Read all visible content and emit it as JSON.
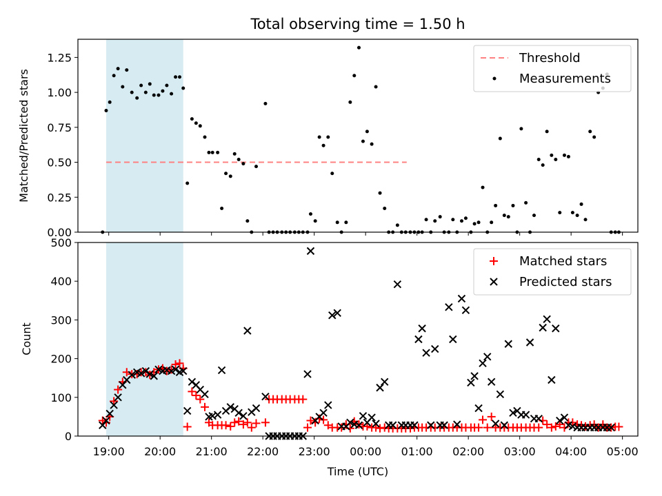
{
  "figure": {
    "title": "Total observing time = 1.50 h",
    "xlabel": "Time (UTC)",
    "x_ticks": [
      "19:00",
      "20:00",
      "21:00",
      "22:00",
      "23:00",
      "00:00",
      "01:00",
      "02:00",
      "03:00",
      "04:00",
      "05:00"
    ],
    "shaded_region": {
      "start_hour": 18.95,
      "end_hour": 20.45,
      "color": "#add8e6"
    }
  },
  "chart_data": [
    {
      "type": "scatter",
      "ylabel": "Matched/Predicted stars",
      "ylim": [
        0,
        1.38
      ],
      "yticks": [
        "0.00",
        "0.25",
        "0.50",
        "0.75",
        "1.00",
        "1.25"
      ],
      "legend_position": "top-right",
      "threshold": {
        "name": "Threshold",
        "value": 0.5,
        "x_start": 18.95,
        "x_end": 24.8,
        "color": "#ff8080"
      },
      "series": [
        {
          "name": "Measurements",
          "color": "#000000",
          "x": [
            18.88,
            18.95,
            19.02,
            19.1,
            19.18,
            19.27,
            19.35,
            19.45,
            19.55,
            19.63,
            19.72,
            19.8,
            19.88,
            19.97,
            20.05,
            20.13,
            20.22,
            20.3,
            20.38,
            20.45,
            20.53,
            20.62,
            20.7,
            20.78,
            20.87,
            20.95,
            21.02,
            21.12,
            21.2,
            21.28,
            21.37,
            21.45,
            21.53,
            21.62,
            21.7,
            21.78,
            21.87,
            22.05,
            22.12,
            22.2,
            22.28,
            22.37,
            22.45,
            22.53,
            22.62,
            22.7,
            22.78,
            22.87,
            22.93,
            23.02,
            23.1,
            23.18,
            23.27,
            23.35,
            23.45,
            23.53,
            23.62,
            23.7,
            23.78,
            23.87,
            23.95,
            24.03,
            24.12,
            24.2,
            24.28,
            24.37,
            24.45,
            24.53,
            24.62,
            24.7,
            24.78,
            24.87,
            24.95,
            25.03,
            25.1,
            25.18,
            25.27,
            25.35,
            25.45,
            25.53,
            25.62,
            25.7,
            25.78,
            25.87,
            25.95,
            26.05,
            26.12,
            26.2,
            26.28,
            26.37,
            26.45,
            26.53,
            26.62,
            26.7,
            26.78,
            26.87,
            26.95,
            27.03,
            27.12,
            27.2,
            27.28,
            27.37,
            27.45,
            27.53,
            27.62,
            27.7,
            27.78,
            27.87,
            27.95,
            28.03,
            28.12,
            28.2,
            28.28,
            28.37,
            28.45,
            28.53,
            28.62,
            28.7,
            28.78
          ],
          "y": [
            0.0,
            0.87,
            0.93,
            1.12,
            1.17,
            1.04,
            1.16,
            1.0,
            0.96,
            1.05,
            1.0,
            1.06,
            0.98,
            0.98,
            1.01,
            1.05,
            0.99,
            1.11,
            1.11,
            1.03,
            0.35,
            0.81,
            0.78,
            0.76,
            0.68,
            0.57,
            0.57,
            0.57,
            0.17,
            0.42,
            0.4,
            0.56,
            0.52,
            0.49,
            0.08,
            0.0,
            0.47,
            0.92,
            0.0,
            0.0,
            0.0,
            0.0,
            0.0,
            0.0,
            0.0,
            0.0,
            0.0,
            0.0,
            0.13,
            0.08,
            0.68,
            0.62,
            0.68,
            0.42,
            0.07,
            0.0,
            0.07,
            0.93,
            1.12,
            1.32,
            0.65,
            0.72,
            0.63,
            1.04,
            0.28,
            0.17,
            0.0,
            0.0,
            0.05,
            0.0,
            0.0,
            0.0,
            0.0,
            0.0,
            0.0,
            0.09,
            0.0,
            0.08,
            0.11,
            0.0,
            0.0,
            0.09,
            0.0,
            0.08,
            0.1,
            0.0,
            0.06,
            0.07,
            0.32,
            0.0,
            0.07,
            0.19,
            0.67,
            0.12,
            0.11,
            0.19,
            0.0,
            0.74,
            0.21,
            0.0,
            0.12,
            0.52,
            0.48,
            0.72,
            0.55,
            0.52,
            0.14,
            0.55,
            0.54,
            0.14,
            0.12,
            0.2,
            0.09,
            0.72,
            0.68,
            1.0,
            1.03,
            1.13,
            0.0
          ]
        },
        {
          "name": "Measurements (tail)",
          "color": "#000000",
          "legend": false,
          "x": [
            28.86,
            28.93
          ],
          "y": [
            0.0,
            0.0
          ]
        }
      ]
    },
    {
      "type": "scatter",
      "ylabel": "Count",
      "ylim": [
        0,
        500
      ],
      "yticks": [
        "0",
        "100",
        "200",
        "300",
        "400",
        "500"
      ],
      "legend_position": "top-right",
      "series": [
        {
          "name": "Matched stars",
          "marker": "+",
          "color": "#ff0000",
          "x": [
            18.88,
            18.95,
            19.02,
            19.1,
            19.18,
            19.27,
            19.35,
            19.45,
            19.55,
            19.63,
            19.72,
            19.8,
            19.88,
            19.97,
            20.05,
            20.13,
            20.22,
            20.3,
            20.38,
            20.45,
            20.53,
            20.62,
            20.7,
            20.78,
            20.87,
            20.95,
            21.02,
            21.12,
            21.2,
            21.28,
            21.37,
            21.45,
            21.53,
            21.62,
            21.7,
            21.78,
            21.87,
            22.05,
            22.12,
            22.2,
            22.28,
            22.37,
            22.45,
            22.53,
            22.62,
            22.7,
            22.78,
            22.87,
            22.93,
            23.02,
            23.1,
            23.18,
            23.27,
            23.35,
            23.45,
            23.53,
            23.62,
            23.7,
            23.78,
            23.87,
            23.95,
            24.03,
            24.12,
            24.2,
            24.28,
            24.37,
            24.45,
            24.53,
            24.62,
            24.7,
            24.78,
            24.87,
            24.95,
            25.03,
            25.1,
            25.18,
            25.27,
            25.35,
            25.45,
            25.53,
            25.62,
            25.7,
            25.78,
            25.87,
            25.95,
            26.05,
            26.12,
            26.2,
            26.28,
            26.37,
            26.45,
            26.53,
            26.62,
            26.7,
            26.78,
            26.87,
            26.95,
            27.03,
            27.12,
            27.2,
            27.28,
            27.37,
            27.45,
            27.53,
            27.62,
            27.7,
            27.78,
            27.87,
            27.95,
            28.03,
            28.12,
            28.2,
            28.28,
            28.37,
            28.45,
            28.53,
            28.62,
            28.7,
            28.78
          ],
          "y": [
            40,
            35,
            50,
            90,
            120,
            140,
            165,
            160,
            160,
            165,
            165,
            158,
            165,
            172,
            175,
            168,
            172,
            185,
            188,
            175,
            24,
            115,
            105,
            95,
            75,
            35,
            28,
            28,
            28,
            28,
            25,
            35,
            38,
            30,
            35,
            22,
            33,
            35,
            95,
            95,
            95,
            95,
            95,
            95,
            95,
            95,
            95,
            22,
            40,
            35,
            45,
            42,
            28,
            22,
            22,
            22,
            30,
            20,
            38,
            30,
            25,
            25,
            22,
            22,
            20,
            22,
            20,
            20,
            20,
            20,
            20,
            20,
            22,
            22,
            22,
            22,
            22,
            22,
            22,
            22,
            22,
            22,
            22,
            22,
            22,
            22,
            22,
            22,
            42,
            22,
            50,
            22,
            22,
            22,
            22,
            22,
            22,
            22,
            22,
            22,
            22,
            22,
            40,
            30,
            22,
            25,
            30,
            22,
            35,
            35,
            30,
            28,
            25,
            28,
            30,
            22,
            30,
            22,
            22
          ]
        },
        {
          "name": "Matched stars (tail)",
          "marker": "+",
          "color": "#ff0000",
          "legend": false,
          "x": [
            28.86,
            28.93
          ],
          "y": [
            24,
            24
          ]
        },
        {
          "name": "Predicted stars",
          "marker": "x",
          "color": "#000000",
          "x": [
            18.88,
            18.95,
            19.02,
            19.1,
            19.18,
            19.27,
            19.35,
            19.45,
            19.55,
            19.63,
            19.72,
            19.8,
            19.88,
            19.97,
            20.05,
            20.13,
            20.22,
            20.3,
            20.38,
            20.45,
            20.53,
            20.62,
            20.7,
            20.78,
            20.87,
            20.95,
            21.02,
            21.12,
            21.2,
            21.28,
            21.37,
            21.45,
            21.53,
            21.62,
            21.7,
            21.78,
            21.87,
            22.05,
            22.12,
            22.2,
            22.28,
            22.37,
            22.45,
            22.53,
            22.62,
            22.7,
            22.78,
            22.87,
            22.93,
            23.02,
            23.1,
            23.18,
            23.27,
            23.35,
            23.45,
            23.53,
            23.62,
            23.7,
            23.78,
            23.87,
            23.95,
            24.03,
            24.12,
            24.2,
            24.28,
            24.37,
            24.45,
            24.53,
            24.62,
            24.7,
            24.78,
            24.87,
            24.95,
            25.03,
            25.1,
            25.18,
            25.27,
            25.35,
            25.45,
            25.53,
            25.62,
            25.7,
            25.78,
            25.87,
            25.95,
            26.05,
            26.12,
            26.2,
            26.28,
            26.37,
            26.45,
            26.53,
            26.62,
            26.7,
            26.78,
            26.87,
            26.95,
            27.03,
            27.12,
            27.2,
            27.28,
            27.37,
            27.45,
            27.53,
            27.62,
            27.7,
            27.78,
            27.87,
            27.95,
            28.03,
            28.12,
            28.2,
            28.28,
            28.37,
            28.45,
            28.53,
            28.62,
            28.7,
            28.78
          ],
          "y": [
            28,
            40,
            58,
            80,
            100,
            132,
            145,
            158,
            165,
            162,
            168,
            160,
            155,
            172,
            168,
            170,
            168,
            172,
            165,
            168,
            65,
            140,
            132,
            120,
            108,
            50,
            52,
            55,
            170,
            65,
            75,
            70,
            60,
            52,
            272,
            62,
            72,
            102,
            0,
            0,
            0,
            0,
            0,
            0,
            0,
            0,
            0,
            160,
            478,
            40,
            50,
            60,
            80,
            312,
            318,
            25,
            25,
            35,
            30,
            28,
            52,
            35,
            48,
            32,
            125,
            140,
            28,
            28,
            392,
            28,
            28,
            28,
            28,
            250,
            278,
            215,
            28,
            225,
            28,
            28,
            333,
            250,
            30,
            355,
            325,
            138,
            155,
            72,
            188,
            205,
            140,
            32,
            108,
            28,
            238,
            60,
            65,
            55,
            55,
            242,
            45,
            45,
            280,
            302,
            145,
            278,
            40,
            48,
            28,
            25,
            22,
            22,
            22,
            22,
            22,
            22,
            22,
            22,
            22
          ]
        }
      ]
    }
  ]
}
